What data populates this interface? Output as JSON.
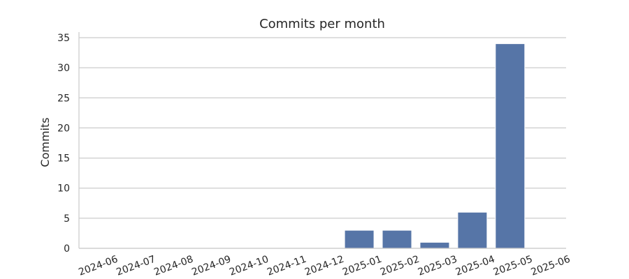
{
  "chart_data": {
    "type": "bar",
    "title": "Commits per month",
    "xlabel": "",
    "ylabel": "Commits",
    "categories": [
      "2024-06",
      "2024-07",
      "2024-08",
      "2024-09",
      "2024-10",
      "2024-11",
      "2024-12",
      "2025-01",
      "2025-02",
      "2025-03",
      "2025-04",
      "2025-05",
      "2025-06"
    ],
    "values": [
      0,
      0,
      0,
      0,
      0,
      0,
      0,
      3,
      3,
      1,
      6,
      34,
      0
    ],
    "ylim": [
      0,
      35
    ],
    "yticks": [
      0,
      5,
      10,
      15,
      20,
      25,
      30,
      35
    ],
    "grid": "horizontal",
    "bar_color": "#5675a7",
    "grid_color": "#cccccc",
    "text_color": "#262626"
  }
}
